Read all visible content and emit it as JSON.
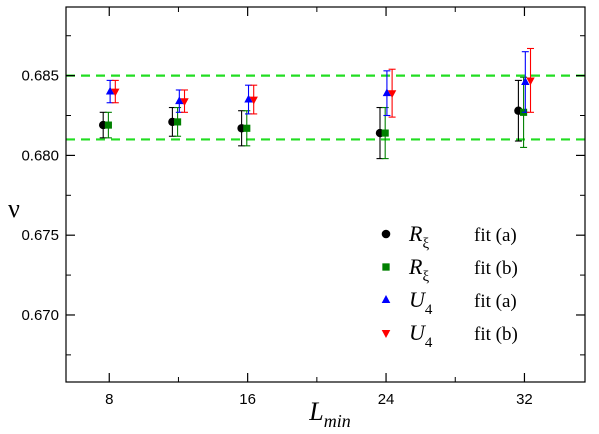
{
  "chart_data": {
    "type": "scatter",
    "title": "",
    "xlabel": "L_min",
    "xlabel_main": "L",
    "xlabel_sub": "min",
    "ylabel": "ν",
    "xlim": [
      5.5,
      35.5
    ],
    "ylim": [
      0.6658,
      0.6893
    ],
    "x_ticks": [
      8,
      16,
      24,
      32
    ],
    "x_minor_ticks": [
      12,
      20,
      28
    ],
    "y_ticks": [
      0.67,
      0.675,
      0.68,
      0.685
    ],
    "y_tick_labels": [
      "0.670",
      "0.675",
      "0.680",
      "0.685"
    ],
    "hlines": [
      {
        "y": 0.685,
        "color": "#22dd22",
        "style": "dashed"
      },
      {
        "y": 0.681,
        "color": "#22dd22",
        "style": "dashed"
      }
    ],
    "series": [
      {
        "name": "R_ξ fit (a)",
        "marker": "circle",
        "color": "#000000",
        "x_offset": -0.35,
        "points": [
          {
            "x": 8,
            "y": 0.6819,
            "err_low": 0.0008,
            "err_high": 0.0008
          },
          {
            "x": 12,
            "y": 0.6821,
            "err_low": 0.0009,
            "err_high": 0.0009
          },
          {
            "x": 16,
            "y": 0.6817,
            "err_low": 0.0011,
            "err_high": 0.0011
          },
          {
            "x": 24,
            "y": 0.6814,
            "err_low": 0.0016,
            "err_high": 0.0016
          },
          {
            "x": 32,
            "y": 0.6828,
            "err_low": 0.0019,
            "err_high": 0.0019
          }
        ]
      },
      {
        "name": "R_ξ fit (b)",
        "marker": "square",
        "color": "#008000",
        "x_offset": -0.05,
        "points": [
          {
            "x": 8,
            "y": 0.6819,
            "err_low": 0.0008,
            "err_high": 0.0008
          },
          {
            "x": 12,
            "y": 0.6821,
            "err_low": 0.0009,
            "err_high": 0.0009
          },
          {
            "x": 16,
            "y": 0.6817,
            "err_low": 0.0011,
            "err_high": 0.0011
          },
          {
            "x": 24,
            "y": 0.6814,
            "err_low": 0.0016,
            "err_high": 0.0016
          },
          {
            "x": 32,
            "y": 0.6827,
            "err_low": 0.0022,
            "err_high": 0.0022
          }
        ]
      },
      {
        "name": "U_4 fit (a)",
        "marker": "triangle-up",
        "color": "#0000ff",
        "x_offset": 0.05,
        "points": [
          {
            "x": 8,
            "y": 0.684,
            "err_low": 0.0007,
            "err_high": 0.0007
          },
          {
            "x": 12,
            "y": 0.6834,
            "err_low": 0.0007,
            "err_high": 0.0007
          },
          {
            "x": 16,
            "y": 0.6835,
            "err_low": 0.0009,
            "err_high": 0.0009
          },
          {
            "x": 24,
            "y": 0.6839,
            "err_low": 0.0014,
            "err_high": 0.0014
          },
          {
            "x": 32,
            "y": 0.6846,
            "err_low": 0.0019,
            "err_high": 0.0019
          }
        ]
      },
      {
        "name": "U_4 fit (b)",
        "marker": "triangle-down",
        "color": "#ff0000",
        "x_offset": 0.35,
        "points": [
          {
            "x": 8,
            "y": 0.684,
            "err_low": 0.0007,
            "err_high": 0.0007
          },
          {
            "x": 12,
            "y": 0.6834,
            "err_low": 0.0007,
            "err_high": 0.0007
          },
          {
            "x": 16,
            "y": 0.6835,
            "err_low": 0.0009,
            "err_high": 0.0009
          },
          {
            "x": 24,
            "y": 0.6839,
            "err_low": 0.0015,
            "err_high": 0.0015
          },
          {
            "x": 32,
            "y": 0.6847,
            "err_low": 0.002,
            "err_high": 0.002
          }
        ]
      }
    ],
    "legend": {
      "placement": "lower-right",
      "entries": [
        {
          "symbol": "R",
          "sub": "ξ",
          "fit": "fit  (a)",
          "marker": "circle",
          "color": "#000000"
        },
        {
          "symbol": "R",
          "sub": "ξ",
          "fit": "fit  (b)",
          "marker": "square",
          "color": "#008000"
        },
        {
          "symbol": "U",
          "sub": "4",
          "fit": "fit  (a)",
          "marker": "triangle-up",
          "color": "#0000ff"
        },
        {
          "symbol": "U",
          "sub": "4",
          "fit": "fit  (b)",
          "marker": "triangle-down",
          "color": "#ff0000"
        }
      ]
    }
  }
}
